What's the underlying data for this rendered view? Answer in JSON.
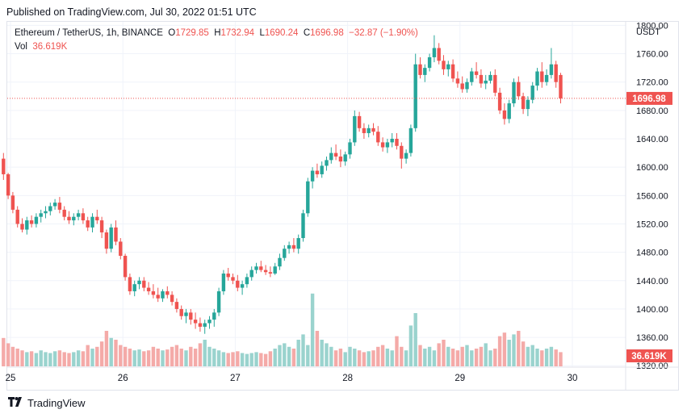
{
  "header": {
    "published": "Published on TradingView.com, Jul 30, 2022 01:51 UTC"
  },
  "legend": {
    "symbol": "Ethereum / TetherUS, 1h, BINANCE",
    "open_label": "O",
    "open": "1729.85",
    "high_label": "H",
    "high": "1732.94",
    "low_label": "L",
    "low": "1690.24",
    "close_label": "C",
    "close": "1696.98",
    "change": "−32.87 (−1.90%)",
    "vol_label": "Vol",
    "vol": "36.619K"
  },
  "footer": {
    "brand": "TradingView",
    "logo_icon": "tradingview-logo-icon"
  },
  "colors": {
    "up": "#26a69a",
    "down": "#ef5350",
    "up_vol": "#9ad3ce",
    "down_vol": "#f4aaa8",
    "grid": "#f0f3fa"
  },
  "chart_data": {
    "type": "candlestick",
    "currency": "USDT",
    "y_ticks": [
      "1800.00",
      "1760.00",
      "1720.00",
      "1680.00",
      "1640.00",
      "1600.00",
      "1560.00",
      "1520.00",
      "1480.00",
      "1440.00",
      "1400.00",
      "1360.00",
      "1320.00"
    ],
    "ylim": [
      1318,
      1805
    ],
    "x_ticks": [
      {
        "label": "25",
        "day": 0
      },
      {
        "label": "26",
        "day": 1
      },
      {
        "label": "27",
        "day": 2
      },
      {
        "label": "28",
        "day": 3
      },
      {
        "label": "29",
        "day": 4
      },
      {
        "label": "30",
        "day": 5
      }
    ],
    "last_price": "1696.98",
    "last_price_value": 1696.98,
    "last_volume": "36.619K",
    "candles_per_day": 24,
    "start_offset_hours": -2,
    "candles": [
      [
        1612,
        1620,
        1582,
        1590
      ],
      [
        1590,
        1592,
        1555,
        1560
      ],
      [
        1560,
        1565,
        1535,
        1540
      ],
      [
        1540,
        1545,
        1515,
        1520
      ],
      [
        1520,
        1528,
        1508,
        1512
      ],
      [
        1512,
        1530,
        1505,
        1525
      ],
      [
        1525,
        1532,
        1515,
        1520
      ],
      [
        1520,
        1535,
        1515,
        1530
      ],
      [
        1530,
        1540,
        1522,
        1535
      ],
      [
        1535,
        1545,
        1528,
        1538
      ],
      [
        1538,
        1550,
        1532,
        1545
      ],
      [
        1545,
        1555,
        1540,
        1550
      ],
      [
        1550,
        1558,
        1535,
        1540
      ],
      [
        1540,
        1545,
        1525,
        1530
      ],
      [
        1530,
        1538,
        1520,
        1525
      ],
      [
        1525,
        1535,
        1518,
        1530
      ],
      [
        1530,
        1540,
        1525,
        1535
      ],
      [
        1535,
        1542,
        1520,
        1525
      ],
      [
        1525,
        1530,
        1510,
        1515
      ],
      [
        1515,
        1535,
        1508,
        1530
      ],
      [
        1530,
        1540,
        1520,
        1525
      ],
      [
        1525,
        1530,
        1500,
        1508
      ],
      [
        1508,
        1512,
        1478,
        1485
      ],
      [
        1485,
        1520,
        1480,
        1515
      ],
      [
        1515,
        1525,
        1490,
        1495
      ],
      [
        1495,
        1500,
        1470,
        1475
      ],
      [
        1475,
        1478,
        1440,
        1445
      ],
      [
        1445,
        1450,
        1420,
        1425
      ],
      [
        1425,
        1440,
        1418,
        1435
      ],
      [
        1435,
        1445,
        1428,
        1440
      ],
      [
        1440,
        1445,
        1425,
        1430
      ],
      [
        1430,
        1438,
        1420,
        1425
      ],
      [
        1425,
        1435,
        1415,
        1420
      ],
      [
        1420,
        1430,
        1410,
        1415
      ],
      [
        1415,
        1428,
        1410,
        1425
      ],
      [
        1425,
        1432,
        1415,
        1420
      ],
      [
        1420,
        1425,
        1405,
        1410
      ],
      [
        1410,
        1415,
        1395,
        1400
      ],
      [
        1400,
        1405,
        1385,
        1390
      ],
      [
        1390,
        1400,
        1380,
        1395
      ],
      [
        1395,
        1400,
        1378,
        1385
      ],
      [
        1385,
        1395,
        1372,
        1380
      ],
      [
        1380,
        1388,
        1368,
        1375
      ],
      [
        1375,
        1385,
        1365,
        1380
      ],
      [
        1380,
        1390,
        1372,
        1385
      ],
      [
        1385,
        1400,
        1375,
        1395
      ],
      [
        1395,
        1430,
        1390,
        1425
      ],
      [
        1425,
        1455,
        1420,
        1450
      ],
      [
        1450,
        1458,
        1440,
        1445
      ],
      [
        1445,
        1450,
        1435,
        1440
      ],
      [
        1440,
        1448,
        1425,
        1430
      ],
      [
        1430,
        1440,
        1420,
        1435
      ],
      [
        1435,
        1450,
        1430,
        1445
      ],
      [
        1445,
        1460,
        1440,
        1455
      ],
      [
        1455,
        1465,
        1450,
        1460
      ],
      [
        1460,
        1468,
        1452,
        1455
      ],
      [
        1455,
        1462,
        1448,
        1452
      ],
      [
        1452,
        1460,
        1445,
        1450
      ],
      [
        1450,
        1465,
        1448,
        1460
      ],
      [
        1460,
        1478,
        1455,
        1472
      ],
      [
        1472,
        1490,
        1468,
        1485
      ],
      [
        1485,
        1495,
        1478,
        1490
      ],
      [
        1490,
        1500,
        1480,
        1485
      ],
      [
        1485,
        1505,
        1478,
        1500
      ],
      [
        1500,
        1540,
        1495,
        1535
      ],
      [
        1535,
        1585,
        1530,
        1580
      ],
      [
        1580,
        1600,
        1570,
        1595
      ],
      [
        1595,
        1605,
        1585,
        1590
      ],
      [
        1590,
        1608,
        1585,
        1602
      ],
      [
        1602,
        1615,
        1595,
        1610
      ],
      [
        1610,
        1628,
        1605,
        1620
      ],
      [
        1620,
        1632,
        1610,
        1615
      ],
      [
        1615,
        1625,
        1600,
        1608
      ],
      [
        1608,
        1622,
        1602,
        1618
      ],
      [
        1618,
        1640,
        1612,
        1635
      ],
      [
        1635,
        1680,
        1630,
        1672
      ],
      [
        1672,
        1678,
        1650,
        1655
      ],
      [
        1655,
        1662,
        1640,
        1648
      ],
      [
        1648,
        1660,
        1642,
        1655
      ],
      [
        1655,
        1662,
        1645,
        1650
      ],
      [
        1650,
        1658,
        1630,
        1635
      ],
      [
        1635,
        1642,
        1622,
        1628
      ],
      [
        1628,
        1640,
        1620,
        1635
      ],
      [
        1635,
        1648,
        1628,
        1640
      ],
      [
        1640,
        1648,
        1625,
        1630
      ],
      [
        1630,
        1635,
        1598,
        1612
      ],
      [
        1612,
        1625,
        1605,
        1620
      ],
      [
        1620,
        1660,
        1615,
        1655
      ],
      [
        1655,
        1760,
        1650,
        1745
      ],
      [
        1745,
        1755,
        1725,
        1730
      ],
      [
        1730,
        1745,
        1720,
        1740
      ],
      [
        1740,
        1760,
        1735,
        1755
      ],
      [
        1755,
        1786,
        1748,
        1768
      ],
      [
        1768,
        1775,
        1745,
        1750
      ],
      [
        1750,
        1758,
        1730,
        1738
      ],
      [
        1738,
        1750,
        1728,
        1745
      ],
      [
        1745,
        1752,
        1720,
        1725
      ],
      [
        1725,
        1735,
        1712,
        1718
      ],
      [
        1718,
        1728,
        1705,
        1710
      ],
      [
        1710,
        1725,
        1705,
        1720
      ],
      [
        1720,
        1740,
        1715,
        1735
      ],
      [
        1735,
        1748,
        1725,
        1730
      ],
      [
        1730,
        1738,
        1712,
        1718
      ],
      [
        1718,
        1730,
        1710,
        1722
      ],
      [
        1722,
        1735,
        1718,
        1730
      ],
      [
        1730,
        1738,
        1700,
        1705
      ],
      [
        1705,
        1712,
        1675,
        1680
      ],
      [
        1680,
        1690,
        1660,
        1668
      ],
      [
        1668,
        1695,
        1662,
        1690
      ],
      [
        1690,
        1725,
        1685,
        1720
      ],
      [
        1720,
        1728,
        1695,
        1700
      ],
      [
        1700,
        1705,
        1675,
        1682
      ],
      [
        1682,
        1700,
        1672,
        1695
      ],
      [
        1695,
        1720,
        1690,
        1715
      ],
      [
        1715,
        1740,
        1708,
        1735
      ],
      [
        1735,
        1748,
        1712,
        1720
      ],
      [
        1720,
        1738,
        1715,
        1730
      ],
      [
        1730,
        1768,
        1725,
        1745
      ],
      [
        1745,
        1750,
        1712,
        1720
      ],
      [
        1730,
        1733,
        1690,
        1697
      ]
    ],
    "volumes": [
      32,
      26,
      22,
      20,
      18,
      16,
      17,
      15,
      18,
      16,
      15,
      17,
      18,
      16,
      15,
      16,
      18,
      17,
      24,
      20,
      22,
      28,
      40,
      32,
      30,
      24,
      22,
      20,
      18,
      19,
      17,
      18,
      22,
      20,
      18,
      19,
      22,
      24,
      20,
      18,
      22,
      20,
      26,
      30,
      22,
      20,
      18,
      16,
      15,
      16,
      17,
      15,
      14,
      15,
      16,
      15,
      14,
      17,
      20,
      24,
      26,
      22,
      20,
      30,
      36,
      24,
      82,
      40,
      30,
      26,
      22,
      18,
      20,
      16,
      22,
      20,
      18,
      16,
      17,
      18,
      22,
      24,
      20,
      18,
      34,
      22,
      18,
      46,
      60,
      24,
      20,
      22,
      18,
      26,
      30,
      22,
      20,
      18,
      22,
      24,
      18,
      20,
      22,
      26,
      18,
      20,
      34,
      38,
      30,
      36,
      40,
      28,
      22,
      24,
      20,
      18,
      20,
      22,
      19,
      16
    ],
    "vol_max": 100
  }
}
